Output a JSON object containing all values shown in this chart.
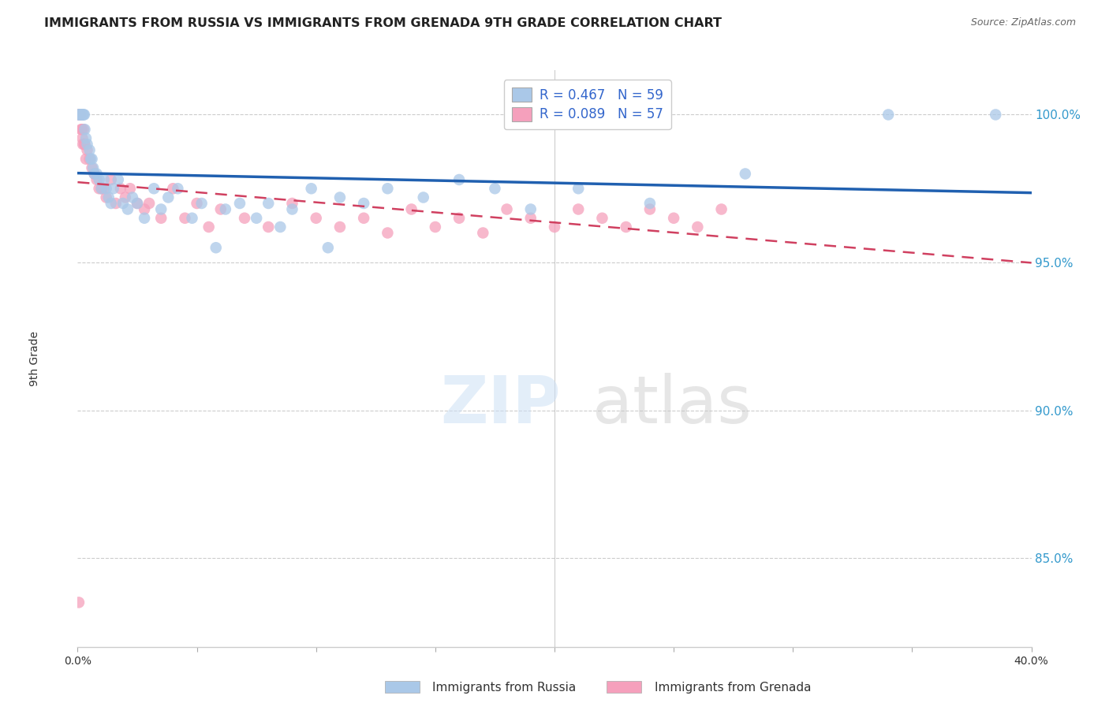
{
  "title": "IMMIGRANTS FROM RUSSIA VS IMMIGRANTS FROM GRENADA 9TH GRADE CORRELATION CHART",
  "source": "Source: ZipAtlas.com",
  "ylabel": "9th Grade",
  "xlim": [
    0.0,
    40.0
  ],
  "ylim": [
    82.0,
    101.5
  ],
  "russia_R": 0.467,
  "russia_N": 59,
  "grenada_R": 0.089,
  "grenada_N": 57,
  "russia_color": "#aac8e8",
  "grenada_color": "#f5a0bc",
  "russia_line_color": "#2060b0",
  "grenada_line_color": "#d04060",
  "y_tick_positions": [
    85.0,
    90.0,
    95.0,
    100.0
  ],
  "y_tick_labels": [
    "85.0%",
    "90.0%",
    "95.0%",
    "100.0%"
  ],
  "russia_x": [
    0.05,
    0.08,
    0.1,
    0.12,
    0.15,
    0.18,
    0.2,
    0.22,
    0.25,
    0.28,
    0.3,
    0.35,
    0.4,
    0.5,
    0.55,
    0.6,
    0.65,
    0.7,
    0.8,
    0.9,
    1.0,
    1.1,
    1.2,
    1.3,
    1.4,
    1.5,
    1.7,
    1.9,
    2.1,
    2.3,
    2.5,
    2.8,
    3.2,
    3.5,
    3.8,
    4.2,
    4.8,
    5.2,
    5.8,
    6.2,
    6.8,
    7.5,
    8.0,
    8.5,
    9.0,
    9.8,
    10.5,
    11.0,
    12.0,
    13.0,
    14.5,
    16.0,
    17.5,
    19.0,
    21.0,
    24.0,
    28.0,
    34.0,
    38.5
  ],
  "russia_y": [
    100.0,
    100.0,
    100.0,
    100.0,
    100.0,
    100.0,
    100.0,
    100.0,
    100.0,
    100.0,
    99.5,
    99.2,
    99.0,
    98.8,
    98.5,
    98.5,
    98.2,
    98.0,
    98.0,
    97.8,
    97.5,
    97.8,
    97.5,
    97.2,
    97.0,
    97.5,
    97.8,
    97.0,
    96.8,
    97.2,
    97.0,
    96.5,
    97.5,
    96.8,
    97.2,
    97.5,
    96.5,
    97.0,
    95.5,
    96.8,
    97.0,
    96.5,
    97.0,
    96.2,
    96.8,
    97.5,
    95.5,
    97.2,
    97.0,
    97.5,
    97.2,
    97.8,
    97.5,
    96.8,
    97.5,
    97.0,
    98.0,
    100.0,
    100.0
  ],
  "grenada_x": [
    0.05,
    0.07,
    0.1,
    0.12,
    0.15,
    0.18,
    0.2,
    0.22,
    0.25,
    0.28,
    0.3,
    0.35,
    0.4,
    0.5,
    0.6,
    0.7,
    0.8,
    0.9,
    1.0,
    1.1,
    1.2,
    1.4,
    1.6,
    1.8,
    2.0,
    2.2,
    2.5,
    2.8,
    3.0,
    3.5,
    4.0,
    4.5,
    5.0,
    5.5,
    6.0,
    7.0,
    8.0,
    9.0,
    10.0,
    11.0,
    12.0,
    13.0,
    14.0,
    15.0,
    16.0,
    17.0,
    18.0,
    19.0,
    20.0,
    21.0,
    22.0,
    23.0,
    24.0,
    25.0,
    26.0,
    27.0,
    0.05
  ],
  "grenada_y": [
    100.0,
    100.0,
    100.0,
    100.0,
    99.5,
    99.5,
    99.2,
    99.0,
    99.5,
    99.0,
    99.0,
    98.5,
    98.8,
    98.5,
    98.2,
    98.0,
    97.8,
    97.5,
    97.5,
    97.5,
    97.2,
    97.8,
    97.0,
    97.5,
    97.2,
    97.5,
    97.0,
    96.8,
    97.0,
    96.5,
    97.5,
    96.5,
    97.0,
    96.2,
    96.8,
    96.5,
    96.2,
    97.0,
    96.5,
    96.2,
    96.5,
    96.0,
    96.8,
    96.2,
    96.5,
    96.0,
    96.8,
    96.5,
    96.2,
    96.8,
    96.5,
    96.2,
    96.8,
    96.5,
    96.2,
    96.8,
    83.5
  ]
}
